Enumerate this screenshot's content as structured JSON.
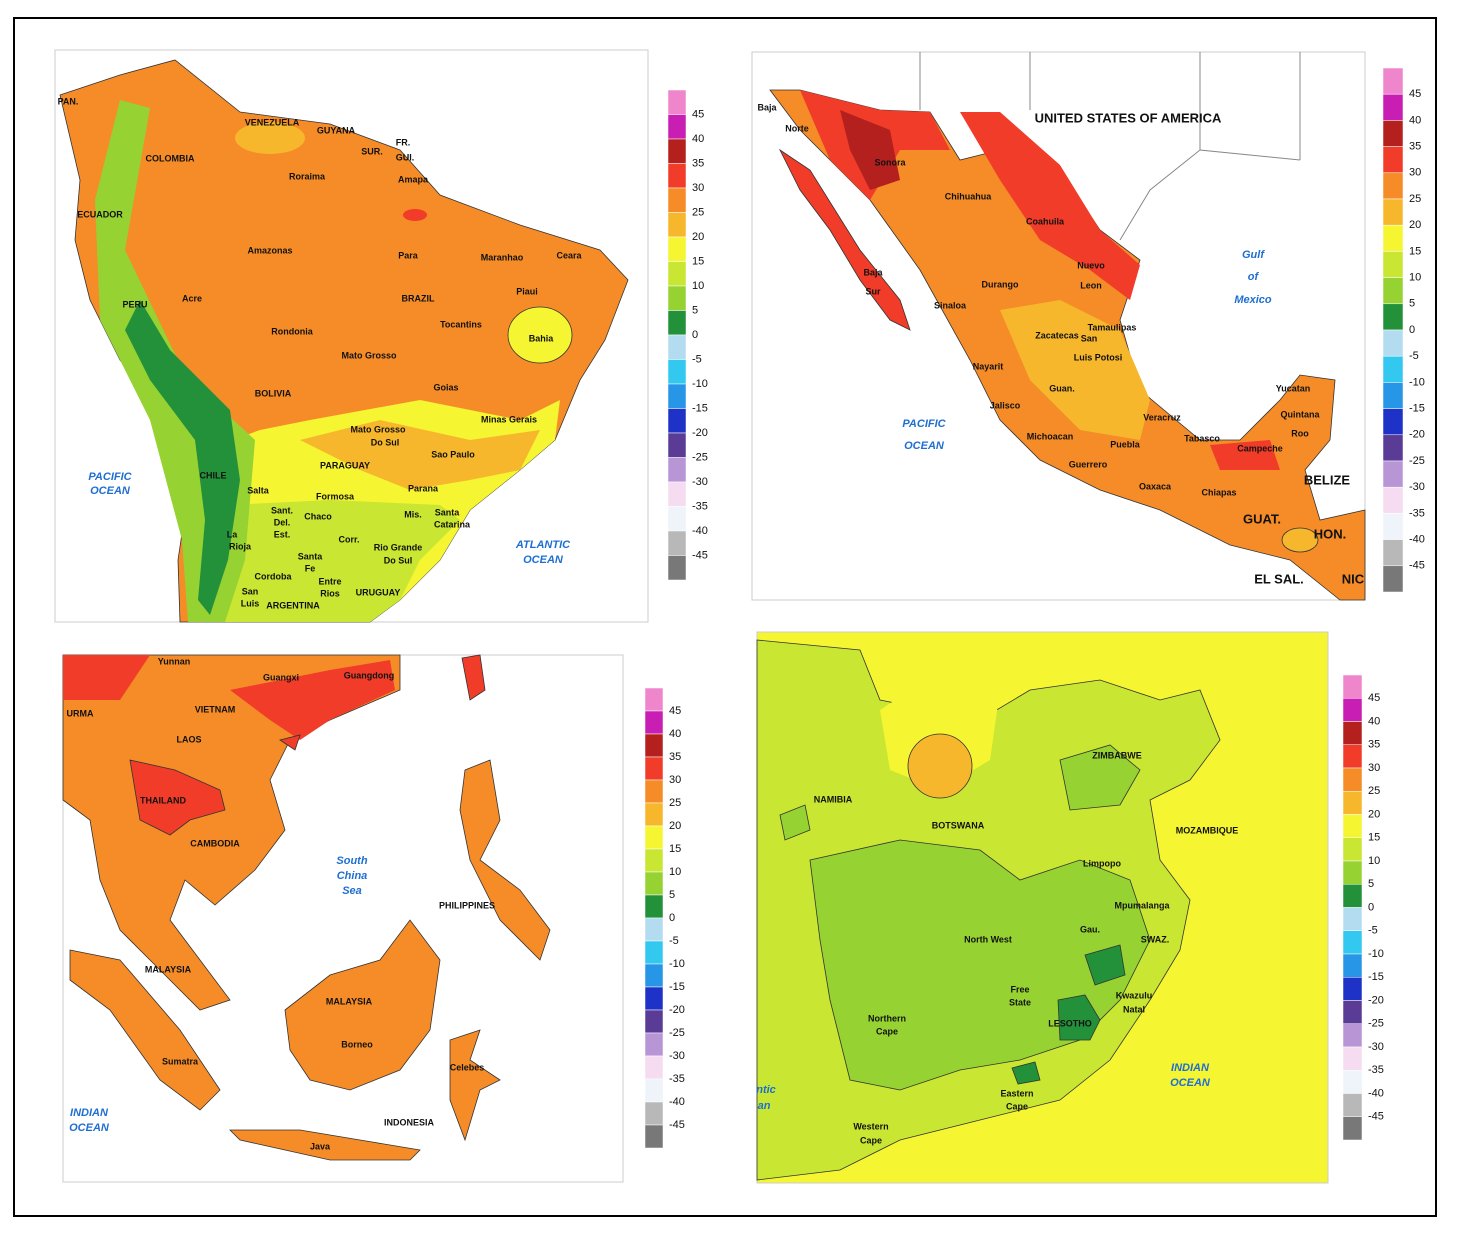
{
  "legend": {
    "ticks": [
      45,
      40,
      35,
      30,
      25,
      20,
      15,
      10,
      5,
      0,
      -5,
      -10,
      -15,
      -20,
      -25,
      -30,
      -35,
      -40,
      -45
    ],
    "colors": [
      "#ef86cc",
      "#c81eb4",
      "#b4201e",
      "#f03c28",
      "#f58c28",
      "#f7b72c",
      "#f5f532",
      "#c8e632",
      "#96d232",
      "#23913a",
      "#b4dcf0",
      "#32c8f0",
      "#2896e6",
      "#1e32c8",
      "#5a3c96",
      "#b896d6",
      "#f5dcf0",
      "#eef4fa",
      "#b8b8b8",
      "#787878"
    ]
  },
  "maps": [
    {
      "labels": [
        "PAN.",
        "VENEZUELA",
        "GUYANA",
        "SUR.",
        "FR.",
        "GUI.",
        "COLOMBIA",
        "Roraima",
        "Amapa",
        "ECUADOR",
        "Amazonas",
        "Para",
        "Maranhao",
        "Ceara",
        "BRAZIL",
        "Piaui",
        "PERU",
        "Acre",
        "Tocantins",
        "Rondonia",
        "Bahia",
        "Mato Grosso",
        "BOLIVIA",
        "Goias",
        "Minas Gerais",
        "Mato Grosso",
        "Do Sul",
        "Sao Paulo",
        "PARAGUAY",
        "PACIFIC",
        "OCEAN",
        "CHILE",
        "Formosa",
        "Parana",
        "Salta",
        "Chaco",
        "Sant.",
        "Del.",
        "Est.",
        "Mis.",
        "Santa",
        "Catarina",
        "ATLANTIC",
        "OCEAN",
        "Corr.",
        "Rio Grande",
        "Do Sul",
        "Santa",
        "Fe",
        "Cordoba",
        "Entre",
        "Rios",
        "ARGENTINA",
        "URUGUAY",
        "San",
        "Luis",
        "La",
        "Rioja"
      ]
    },
    {
      "labels": [
        "Baja",
        "Norte",
        "UNITED STATES OF AMERICA",
        "Sonora",
        "Chihuahua",
        "Coahuila",
        "Gulf",
        "of",
        "Mexico",
        "Nuevo",
        "Leon",
        "Baja",
        "Sur",
        "Durango",
        "Sinaloa",
        "Tamaulipas",
        "Zacatecas",
        "San",
        "Luis Potosi",
        "Nayarit",
        "Guan.",
        "Veracruz",
        "Jalisco",
        "PACIFIC",
        "OCEAN",
        "Michoacan",
        "Tabasco",
        "Yucatan",
        "Quintana",
        "Roo",
        "Puebla",
        "Campeche",
        "Guerrero",
        "Oaxaca",
        "Chiapas",
        "BELIZE",
        "GUAT.",
        "HON.",
        "EL SAL.",
        "NIC"
      ]
    },
    {
      "labels": [
        "Yunnan",
        "Guangxi",
        "Guangdong",
        "URMA",
        "VIETNAM",
        "LAOS",
        "THAILAND",
        "CAMBODIA",
        "South",
        "China",
        "Sea",
        "PHILIPPINES",
        "MALAYSIA",
        "MALAYSIA",
        "Borneo",
        "Sumatra",
        "Celebes",
        "INDONESIA",
        "INDIAN",
        "OCEAN",
        "Java"
      ]
    },
    {
      "labels": [
        "ZIMBABWE",
        "NAMIBIA",
        "BOTSWANA",
        "MOZAMBIQUE",
        "Limpopo",
        "Mpumalanga",
        "North West",
        "Gau.",
        "SWAZ.",
        "Free",
        "State",
        "Kwazulu",
        "Natal",
        "Northern",
        "Cape",
        "LESOTHO",
        "INDIAN",
        "OCEAN",
        "ntic",
        "an",
        "Eastern",
        "Cape",
        "Western",
        "Cape"
      ]
    }
  ]
}
